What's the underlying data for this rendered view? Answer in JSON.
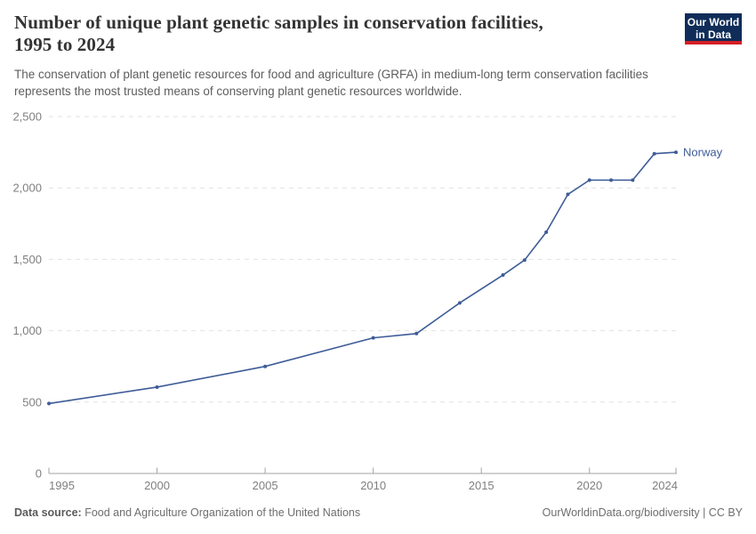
{
  "header": {
    "title_lines": [
      "Number of unique plant genetic samples in conservation facilities,",
      "1995 to 2024"
    ],
    "subtitle_lines": [
      "The conservation of plant genetic resources for food and agriculture (GRFA) in medium-long term conservation facilities",
      "represents the most trusted means of conserving plant genetic resources worldwide."
    ],
    "logo": {
      "line1": "Our World",
      "line2": "in Data",
      "bg_color": "#102d59",
      "stripe_color": "#d21f26"
    }
  },
  "chart_data": {
    "type": "line",
    "title": "Number of unique plant genetic samples in conservation facilities, 1995 to 2024",
    "subtitle": "The conservation of plant genetic resources for food and agriculture (GRFA) in medium-long term conservation facilities represents the most trusted means of conserving plant genetic resources worldwide.",
    "x": [
      1995,
      2000,
      2005,
      2010,
      2012,
      2014,
      2016,
      2017,
      2018,
      2019,
      2020,
      2021,
      2022,
      2023,
      2024
    ],
    "series": [
      {
        "name": "Norway",
        "color": "#3e5c97",
        "values": [
          490,
          605,
          750,
          950,
          980,
          1195,
          1390,
          1495,
          1690,
          1955,
          2055,
          2055,
          2055,
          2240,
          2250
        ]
      }
    ],
    "xlim": [
      1995,
      2024
    ],
    "ylim": [
      0,
      2500
    ],
    "x_ticks": [
      1995,
      2000,
      2005,
      2010,
      2015,
      2020,
      2024
    ],
    "x_tick_labels": [
      "1995",
      "2000",
      "2005",
      "2010",
      "2015",
      "2020",
      "2024"
    ],
    "y_ticks": [
      0,
      500,
      1000,
      1500,
      2000,
      2500
    ],
    "y_tick_labels": [
      "0",
      "500",
      "1,000",
      "1,500",
      "2,000",
      "2,500"
    ],
    "grid": "horizontal-dashed",
    "legend": "line-end-label"
  },
  "footer": {
    "source_label": "Data source:",
    "source_text": " Food and Agriculture Organization of the United Nations",
    "attribution": "OurWorldinData.org/biodiversity | CC BY"
  }
}
